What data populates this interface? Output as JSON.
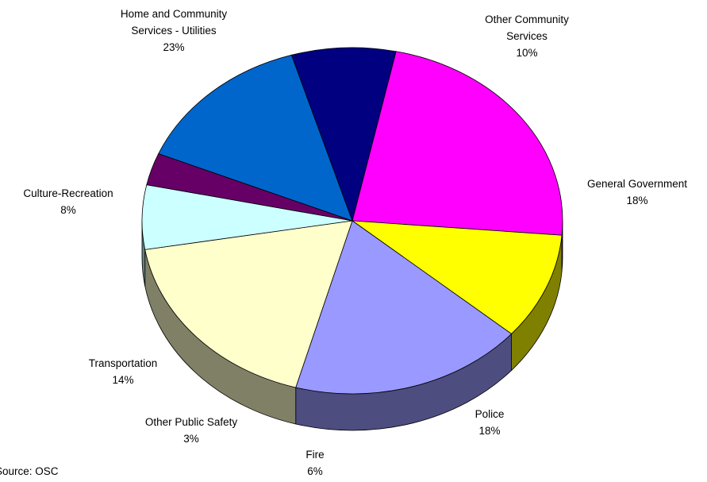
{
  "chart_data": {
    "type": "pie",
    "title": "",
    "slices": [
      {
        "name": "Home and Community Services - Utilities",
        "label_lines": [
          "Home and Community",
          "Services - Utilities"
        ],
        "percent_label": "23%",
        "value": 23,
        "color": "#ff00ff",
        "side_color": "#800080"
      },
      {
        "name": "Other Community Services",
        "label_lines": [
          "Other Community",
          "Services"
        ],
        "percent_label": "10%",
        "value": 10,
        "color": "#ffff00",
        "side_color": "#808000"
      },
      {
        "name": "General Government",
        "label_lines": [
          "General Government"
        ],
        "percent_label": "18%",
        "value": 18,
        "color": "#9999ff",
        "side_color": "#4d4d80"
      },
      {
        "name": "Police",
        "label_lines": [
          "Police"
        ],
        "percent_label": "18%",
        "value": 18,
        "color": "#ffffcc",
        "side_color": "#808066"
      },
      {
        "name": "Fire",
        "label_lines": [
          "Fire"
        ],
        "percent_label": "6%",
        "value": 6,
        "color": "#ccffff",
        "side_color": "#668080"
      },
      {
        "name": "Other Public Safety",
        "label_lines": [
          "Other Public Safety"
        ],
        "percent_label": "3%",
        "value": 3,
        "color": "#660066",
        "side_color": "#330033"
      },
      {
        "name": "Transportation",
        "label_lines": [
          "Transportation"
        ],
        "percent_label": "14%",
        "value": 14,
        "color": "#0066cc",
        "side_color": "#003366"
      },
      {
        "name": "Culture-Recreation",
        "label_lines": [
          "Culture-Recreation"
        ],
        "percent_label": "8%",
        "value": 8,
        "color": "#000080",
        "side_color": "#000040"
      }
    ],
    "start_angle_deg": -78,
    "style": "3d-pie",
    "legend": "none"
  },
  "source": "Source: OSC"
}
